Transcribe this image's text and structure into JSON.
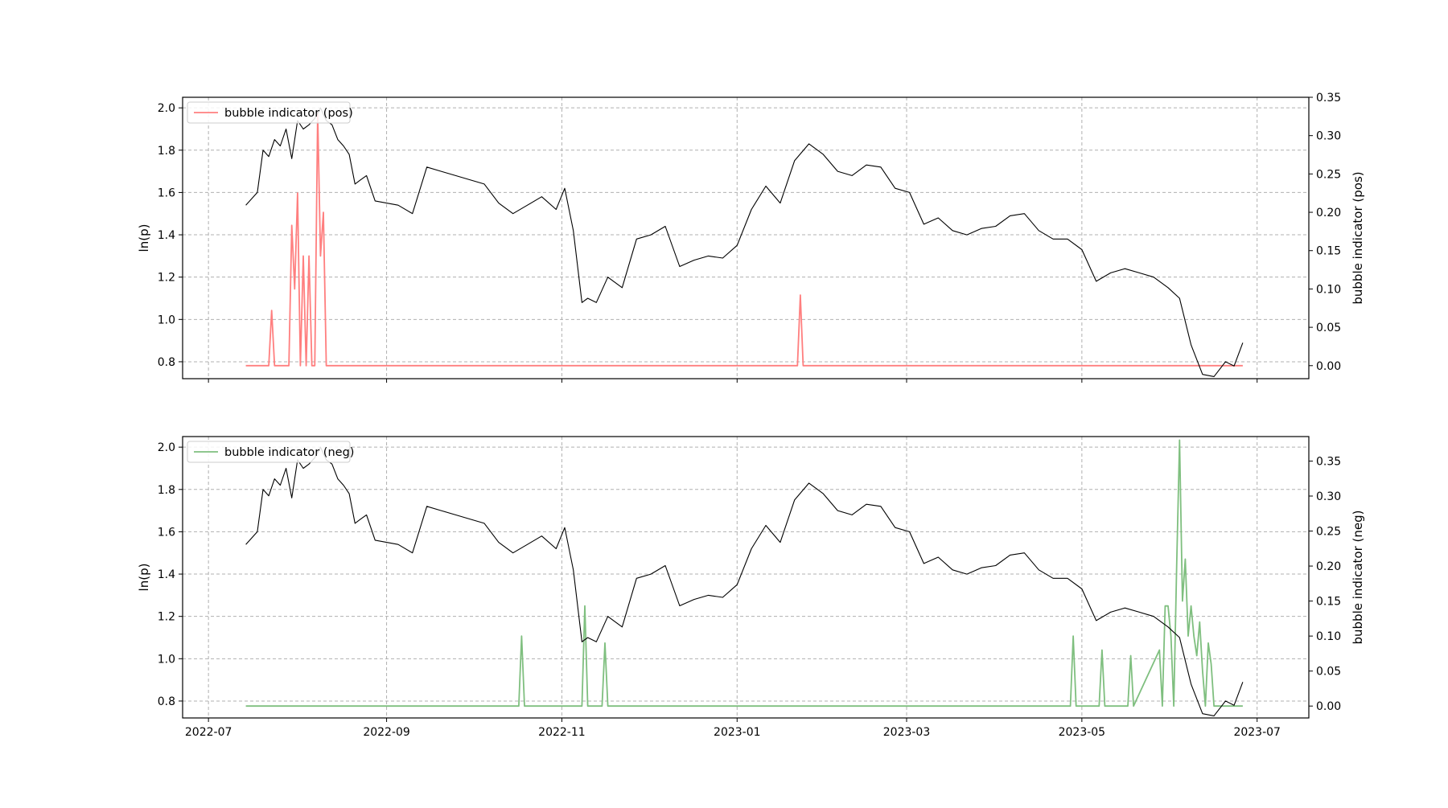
{
  "chart_data": [
    {
      "type": "line",
      "panel": "top",
      "ylabel": "ln(p)",
      "y2label": "bubble indicator (pos)",
      "ylim": [
        0.72,
        2.05
      ],
      "y2lim": [
        0,
        0.35
      ],
      "yticks": [
        "0.8",
        "1.0",
        "1.2",
        "1.4",
        "1.6",
        "1.8",
        "2.0"
      ],
      "y2ticks": [
        "0.00",
        "0.05",
        "0.10",
        "0.15",
        "0.20",
        "0.25",
        "0.30",
        "0.35"
      ],
      "xticks": [
        "2022-07",
        "2022-09",
        "2022-11",
        "2023-01",
        "2023-03",
        "2023-05",
        "2023-07"
      ],
      "show_xtick_labels": false,
      "grid": true,
      "legend": {
        "placement": "top-left",
        "entries": [
          {
            "name": "bubble indicator (pos)",
            "color": "#ff7f7f"
          }
        ]
      },
      "series": [
        {
          "name": "bubble indicator (pos)",
          "axis": "right",
          "color": "#ff7f7f",
          "x": [
            "2022-07-14",
            "2022-07-22",
            "2022-07-23",
            "2022-07-24",
            "2022-07-29",
            "2022-07-30",
            "2022-07-31",
            "2022-08-01",
            "2022-08-02",
            "2022-08-03",
            "2022-08-04",
            "2022-08-05",
            "2022-08-06",
            "2022-08-07",
            "2022-08-08",
            "2022-08-09",
            "2022-08-10",
            "2022-08-11",
            "2022-08-12",
            "2022-08-13",
            "2022-08-14",
            "2023-01-22",
            "2023-01-23",
            "2023-01-24",
            "2023-06-26"
          ],
          "y": [
            0,
            0,
            0.072,
            0,
            0,
            0.183,
            0.1,
            0.225,
            0,
            0.143,
            0,
            0.143,
            0,
            0,
            0.33,
            0.143,
            0.2,
            0,
            0,
            0,
            0,
            0,
            0.092,
            0,
            0
          ]
        },
        {
          "name": "ln(p)",
          "axis": "left",
          "color": "#000000",
          "x": [
            "2022-07-14",
            "2022-07-18",
            "2022-07-20",
            "2022-07-22",
            "2022-07-24",
            "2022-07-26",
            "2022-07-28",
            "2022-07-30",
            "2022-08-01",
            "2022-08-03",
            "2022-08-05",
            "2022-08-07",
            "2022-08-09",
            "2022-08-11",
            "2022-08-13",
            "2022-08-15",
            "2022-08-17",
            "2022-08-19",
            "2022-08-21",
            "2022-08-23",
            "2022-08-25",
            "2022-08-28",
            "2022-09-01",
            "2022-09-05",
            "2022-09-10",
            "2022-09-15",
            "2022-09-20",
            "2022-09-25",
            "2022-09-30",
            "2022-10-05",
            "2022-10-10",
            "2022-10-15",
            "2022-10-20",
            "2022-10-25",
            "2022-10-30",
            "2022-11-02",
            "2022-11-05",
            "2022-11-08",
            "2022-11-10",
            "2022-11-13",
            "2022-11-17",
            "2022-11-22",
            "2022-11-27",
            "2022-12-02",
            "2022-12-07",
            "2022-12-12",
            "2022-12-17",
            "2022-12-22",
            "2022-12-27",
            "2023-01-01",
            "2023-01-06",
            "2023-01-11",
            "2023-01-16",
            "2023-01-21",
            "2023-01-26",
            "2023-01-31",
            "2023-02-05",
            "2023-02-10",
            "2023-02-15",
            "2023-02-20",
            "2023-02-25",
            "2023-03-02",
            "2023-03-07",
            "2023-03-12",
            "2023-03-17",
            "2023-03-22",
            "2023-03-27",
            "2023-04-01",
            "2023-04-06",
            "2023-04-11",
            "2023-04-16",
            "2023-04-21",
            "2023-04-26",
            "2023-05-01",
            "2023-05-06",
            "2023-05-11",
            "2023-05-16",
            "2023-05-21",
            "2023-05-26",
            "2023-05-31",
            "2023-06-04",
            "2023-06-08",
            "2023-06-12",
            "2023-06-16",
            "2023-06-20",
            "2023-06-23",
            "2023-06-26"
          ],
          "y": [
            1.54,
            1.6,
            1.8,
            1.77,
            1.85,
            1.82,
            1.9,
            1.76,
            1.94,
            1.9,
            1.92,
            1.95,
            2.0,
            1.94,
            1.92,
            1.85,
            1.82,
            1.78,
            1.64,
            1.66,
            1.68,
            1.56,
            1.55,
            1.54,
            1.5,
            1.72,
            1.7,
            1.68,
            1.66,
            1.64,
            1.55,
            1.5,
            1.54,
            1.58,
            1.52,
            1.62,
            1.42,
            1.08,
            1.1,
            1.08,
            1.2,
            1.15,
            1.38,
            1.4,
            1.44,
            1.25,
            1.28,
            1.3,
            1.29,
            1.35,
            1.52,
            1.63,
            1.55,
            1.75,
            1.83,
            1.78,
            1.7,
            1.68,
            1.73,
            1.72,
            1.62,
            1.6,
            1.45,
            1.48,
            1.42,
            1.4,
            1.43,
            1.44,
            1.49,
            1.5,
            1.42,
            1.38,
            1.38,
            1.33,
            1.18,
            1.22,
            1.24,
            1.22,
            1.2,
            1.15,
            1.1,
            0.88,
            0.74,
            0.73,
            0.8,
            0.78,
            0.89
          ]
        }
      ]
    },
    {
      "type": "line",
      "panel": "bottom",
      "ylabel": "ln(p)",
      "y2label": "bubble indicator (neg)",
      "ylim": [
        0.72,
        2.05
      ],
      "y2lim": [
        0,
        0.385
      ],
      "yticks": [
        "0.8",
        "1.0",
        "1.2",
        "1.4",
        "1.6",
        "1.8",
        "2.0"
      ],
      "y2ticks": [
        "0.00",
        "0.05",
        "0.10",
        "0.15",
        "0.20",
        "0.25",
        "0.30",
        "0.35"
      ],
      "xticks": [
        "2022-07",
        "2022-09",
        "2022-11",
        "2023-01",
        "2023-03",
        "2023-05",
        "2023-07"
      ],
      "show_xtick_labels": true,
      "grid": true,
      "legend": {
        "placement": "top-left",
        "entries": [
          {
            "name": "bubble indicator (neg)",
            "color": "#7fbf7f"
          }
        ]
      },
      "series": [
        {
          "name": "bubble indicator (neg)",
          "axis": "right",
          "color": "#7fbf7f",
          "x": [
            "2022-07-14",
            "2022-10-17",
            "2022-10-18",
            "2022-10-19",
            "2022-11-08",
            "2022-11-09",
            "2022-11-10",
            "2022-11-15",
            "2022-11-16",
            "2022-11-17",
            "2023-04-27",
            "2023-04-28",
            "2023-04-29",
            "2023-05-07",
            "2023-05-08",
            "2023-05-09",
            "2023-05-17",
            "2023-05-18",
            "2023-05-19",
            "2023-05-28",
            "2023-05-29",
            "2023-05-30",
            "2023-05-31",
            "2023-06-01",
            "2023-06-02",
            "2023-06-03",
            "2023-06-04",
            "2023-06-05",
            "2023-06-06",
            "2023-06-07",
            "2023-06-08",
            "2023-06-09",
            "2023-06-10",
            "2023-06-11",
            "2023-06-12",
            "2023-06-13",
            "2023-06-14",
            "2023-06-15",
            "2023-06-16",
            "2023-06-17",
            "2023-06-18",
            "2023-06-19",
            "2023-06-26"
          ],
          "y": [
            0,
            0,
            0.1,
            0,
            0,
            0.143,
            0,
            0,
            0.09,
            0,
            0,
            0.1,
            0,
            0,
            0.08,
            0,
            0,
            0.072,
            0,
            0.08,
            0,
            0.143,
            0.143,
            0.1,
            0,
            0.2,
            0.38,
            0.15,
            0.21,
            0.1,
            0.143,
            0.1,
            0.072,
            0.12,
            0.05,
            0,
            0.09,
            0.06,
            0,
            0,
            0,
            0,
            0
          ]
        },
        {
          "name": "ln(p)",
          "axis": "left",
          "color": "#000000",
          "x": [
            "2022-07-14",
            "2022-07-18",
            "2022-07-20",
            "2022-07-22",
            "2022-07-24",
            "2022-07-26",
            "2022-07-28",
            "2022-07-30",
            "2022-08-01",
            "2022-08-03",
            "2022-08-05",
            "2022-08-07",
            "2022-08-09",
            "2022-08-11",
            "2022-08-13",
            "2022-08-15",
            "2022-08-17",
            "2022-08-19",
            "2022-08-21",
            "2022-08-23",
            "2022-08-25",
            "2022-08-28",
            "2022-09-01",
            "2022-09-05",
            "2022-09-10",
            "2022-09-15",
            "2022-09-20",
            "2022-09-25",
            "2022-09-30",
            "2022-10-05",
            "2022-10-10",
            "2022-10-15",
            "2022-10-20",
            "2022-10-25",
            "2022-10-30",
            "2022-11-02",
            "2022-11-05",
            "2022-11-08",
            "2022-11-10",
            "2022-11-13",
            "2022-11-17",
            "2022-11-22",
            "2022-11-27",
            "2022-12-02",
            "2022-12-07",
            "2022-12-12",
            "2022-12-17",
            "2022-12-22",
            "2022-12-27",
            "2023-01-01",
            "2023-01-06",
            "2023-01-11",
            "2023-01-16",
            "2023-01-21",
            "2023-01-26",
            "2023-01-31",
            "2023-02-05",
            "2023-02-10",
            "2023-02-15",
            "2023-02-20",
            "2023-02-25",
            "2023-03-02",
            "2023-03-07",
            "2023-03-12",
            "2023-03-17",
            "2023-03-22",
            "2023-03-27",
            "2023-04-01",
            "2023-04-06",
            "2023-04-11",
            "2023-04-16",
            "2023-04-21",
            "2023-04-26",
            "2023-05-01",
            "2023-05-06",
            "2023-05-11",
            "2023-05-16",
            "2023-05-21",
            "2023-05-26",
            "2023-05-31",
            "2023-06-04",
            "2023-06-08",
            "2023-06-12",
            "2023-06-16",
            "2023-06-20",
            "2023-06-23",
            "2023-06-26"
          ],
          "y": [
            1.54,
            1.6,
            1.8,
            1.77,
            1.85,
            1.82,
            1.9,
            1.76,
            1.94,
            1.9,
            1.92,
            1.95,
            2.0,
            1.94,
            1.92,
            1.85,
            1.82,
            1.78,
            1.64,
            1.66,
            1.68,
            1.56,
            1.55,
            1.54,
            1.5,
            1.72,
            1.7,
            1.68,
            1.66,
            1.64,
            1.55,
            1.5,
            1.54,
            1.58,
            1.52,
            1.62,
            1.42,
            1.08,
            1.1,
            1.08,
            1.2,
            1.15,
            1.38,
            1.4,
            1.44,
            1.25,
            1.28,
            1.3,
            1.29,
            1.35,
            1.52,
            1.63,
            1.55,
            1.75,
            1.83,
            1.78,
            1.7,
            1.68,
            1.73,
            1.72,
            1.62,
            1.6,
            1.45,
            1.48,
            1.42,
            1.4,
            1.43,
            1.44,
            1.49,
            1.5,
            1.42,
            1.38,
            1.38,
            1.33,
            1.18,
            1.22,
            1.24,
            1.22,
            1.2,
            1.15,
            1.1,
            0.88,
            0.74,
            0.73,
            0.8,
            0.78,
            0.89
          ]
        }
      ]
    }
  ]
}
